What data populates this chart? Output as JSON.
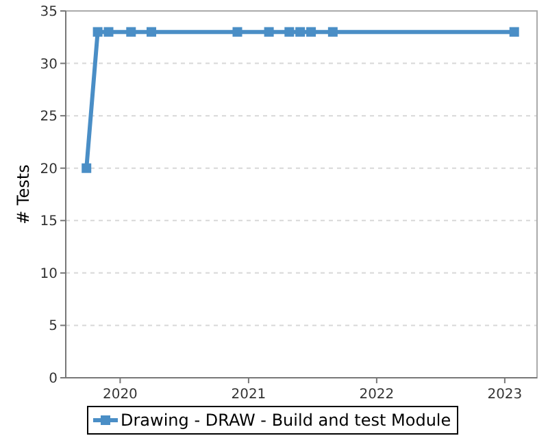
{
  "chart_data": {
    "type": "line",
    "ylabel": "# Tests",
    "x": [
      "2019-09-27",
      "2019-10-29",
      "2019-11-29",
      "2020-02-01",
      "2020-03-30",
      "2020-11-30",
      "2021-02-28",
      "2021-04-27",
      "2021-05-28",
      "2021-06-28",
      "2021-08-29",
      "2023-01-28"
    ],
    "series": [
      {
        "name": "Drawing - DRAW - Build and test Module",
        "color": "#4a8ec6",
        "values": [
          20,
          33,
          33,
          33,
          33,
          33,
          33,
          33,
          33,
          33,
          33,
          33
        ]
      }
    ],
    "xlim": [
      "2019-07-30",
      "2023-04-03"
    ],
    "xticks": [
      {
        "value": "2020-01-01",
        "label": "2020"
      },
      {
        "value": "2021-01-01",
        "label": "2021"
      },
      {
        "value": "2022-01-01",
        "label": "2022"
      },
      {
        "value": "2023-01-01",
        "label": "2023"
      }
    ],
    "ylim": [
      0,
      35
    ],
    "yticks": [
      0,
      5,
      10,
      15,
      20,
      25,
      30,
      35
    ],
    "grid": "y",
    "legend": "bottom",
    "marker": "square",
    "line_style": "solid"
  }
}
